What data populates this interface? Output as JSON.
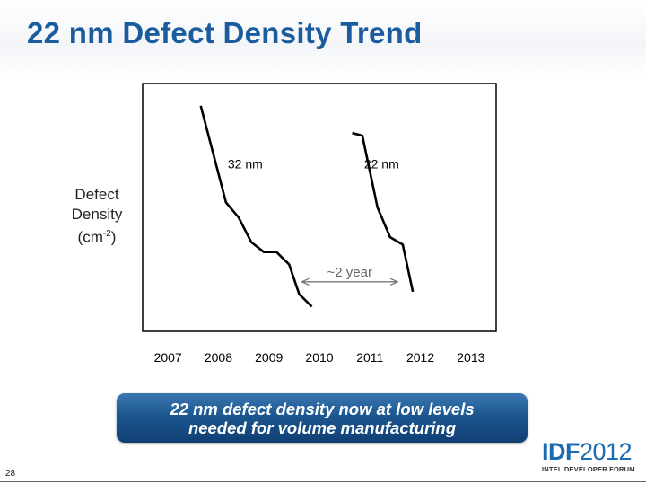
{
  "slide": {
    "title": "22 nm Defect Density Trend",
    "page_number": "28",
    "callout_line1": "22 nm defect density now at low levels",
    "callout_line2": "needed for volume manufacturing"
  },
  "logo": {
    "bold": "IDF",
    "light": "2012",
    "subtitle": "INTEL DEVELOPER FORUM"
  },
  "colors": {
    "title": "#1b5c9e",
    "series": "#000000",
    "annotation": "#666666",
    "callout": "#1d5790",
    "logo": "#1c6ab2"
  },
  "chart_data": {
    "type": "line",
    "ylabel": {
      "line1": "Defect",
      "line2": "Density",
      "line3_base": "(cm",
      "line3_sup": "-2",
      "line3_end": ")"
    },
    "x_ticks": [
      "2007",
      "2008",
      "2009",
      "2010",
      "2011",
      "2012",
      "2013"
    ],
    "xlim": [
      2006.5,
      2013.5
    ],
    "y_scale": "relative (no tick labels)",
    "ylim": [
      0,
      1
    ],
    "grid": false,
    "series": [
      {
        "name": "32 nm",
        "points": [
          [
            2007.65,
            0.91
          ],
          [
            2008.15,
            0.52
          ],
          [
            2008.4,
            0.46
          ],
          [
            2008.65,
            0.36
          ],
          [
            2008.9,
            0.32
          ],
          [
            2009.15,
            0.32
          ],
          [
            2009.4,
            0.27
          ],
          [
            2009.6,
            0.15
          ],
          [
            2009.85,
            0.1
          ]
        ]
      },
      {
        "name": "22 nm",
        "points": [
          [
            2010.65,
            0.8
          ],
          [
            2010.85,
            0.79
          ],
          [
            2011.15,
            0.5
          ],
          [
            2011.4,
            0.38
          ],
          [
            2011.65,
            0.35
          ],
          [
            2011.85,
            0.16
          ]
        ]
      }
    ],
    "annotations": [
      {
        "text": "~2 year",
        "arrow_from_x": 2009.65,
        "arrow_to_x": 2011.55,
        "y": 0.2
      }
    ]
  }
}
